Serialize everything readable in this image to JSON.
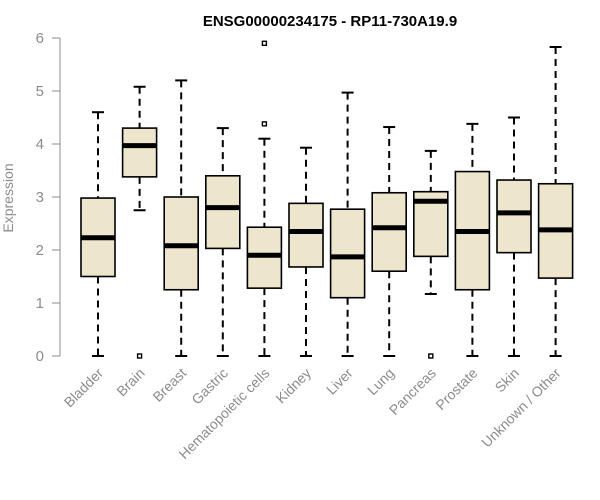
{
  "chart_data": {
    "type": "box",
    "title": "ENSG00000234175 - RP11-730A19.9",
    "ylabel": "Expression",
    "xlabel": "",
    "ylim": [
      0,
      6
    ],
    "yticks": [
      0,
      1,
      2,
      3,
      4,
      5,
      6
    ],
    "ytick_labels": [
      "0",
      "1",
      "2",
      "3",
      "4",
      "5",
      "6"
    ],
    "grid": false,
    "box_color": "#ede6cc",
    "categories": [
      "Bladder",
      "Brain",
      "Breast",
      "Gastric",
      "Hematopoietic cells",
      "Kidney",
      "Liver",
      "Lung",
      "Pancreas",
      "Prostate",
      "Skin",
      "Unknown / Other"
    ],
    "boxes": [
      {
        "whisker_low": 0.0,
        "q1": 1.5,
        "median": 2.23,
        "q3": 2.98,
        "whisker_high": 4.6,
        "outliers": []
      },
      {
        "whisker_low": 2.75,
        "q1": 3.38,
        "median": 3.97,
        "q3": 4.3,
        "whisker_high": 5.08,
        "outliers": [
          0.0
        ]
      },
      {
        "whisker_low": 0.0,
        "q1": 1.25,
        "median": 2.08,
        "q3": 3.0,
        "whisker_high": 5.2,
        "outliers": []
      },
      {
        "whisker_low": 0.0,
        "q1": 2.03,
        "median": 2.8,
        "q3": 3.4,
        "whisker_high": 4.3,
        "outliers": []
      },
      {
        "whisker_low": 0.0,
        "q1": 1.28,
        "median": 1.9,
        "q3": 2.43,
        "whisker_high": 4.1,
        "outliers": [
          4.38,
          5.9
        ]
      },
      {
        "whisker_low": 0.0,
        "q1": 1.68,
        "median": 2.35,
        "q3": 2.88,
        "whisker_high": 3.93,
        "outliers": []
      },
      {
        "whisker_low": 0.0,
        "q1": 1.1,
        "median": 1.87,
        "q3": 2.77,
        "whisker_high": 4.97,
        "outliers": []
      },
      {
        "whisker_low": 0.0,
        "q1": 1.6,
        "median": 2.42,
        "q3": 3.08,
        "whisker_high": 4.32,
        "outliers": []
      },
      {
        "whisker_low": 1.17,
        "q1": 1.88,
        "median": 2.92,
        "q3": 3.1,
        "whisker_high": 3.87,
        "outliers": [
          0.0
        ]
      },
      {
        "whisker_low": 0.0,
        "q1": 1.25,
        "median": 2.35,
        "q3": 3.48,
        "whisker_high": 4.38,
        "outliers": []
      },
      {
        "whisker_low": 0.0,
        "q1": 1.95,
        "median": 2.7,
        "q3": 3.32,
        "whisker_high": 4.5,
        "outliers": []
      },
      {
        "whisker_low": 0.0,
        "q1": 1.47,
        "median": 2.38,
        "q3": 3.25,
        "whisker_high": 5.83,
        "outliers": []
      }
    ]
  }
}
